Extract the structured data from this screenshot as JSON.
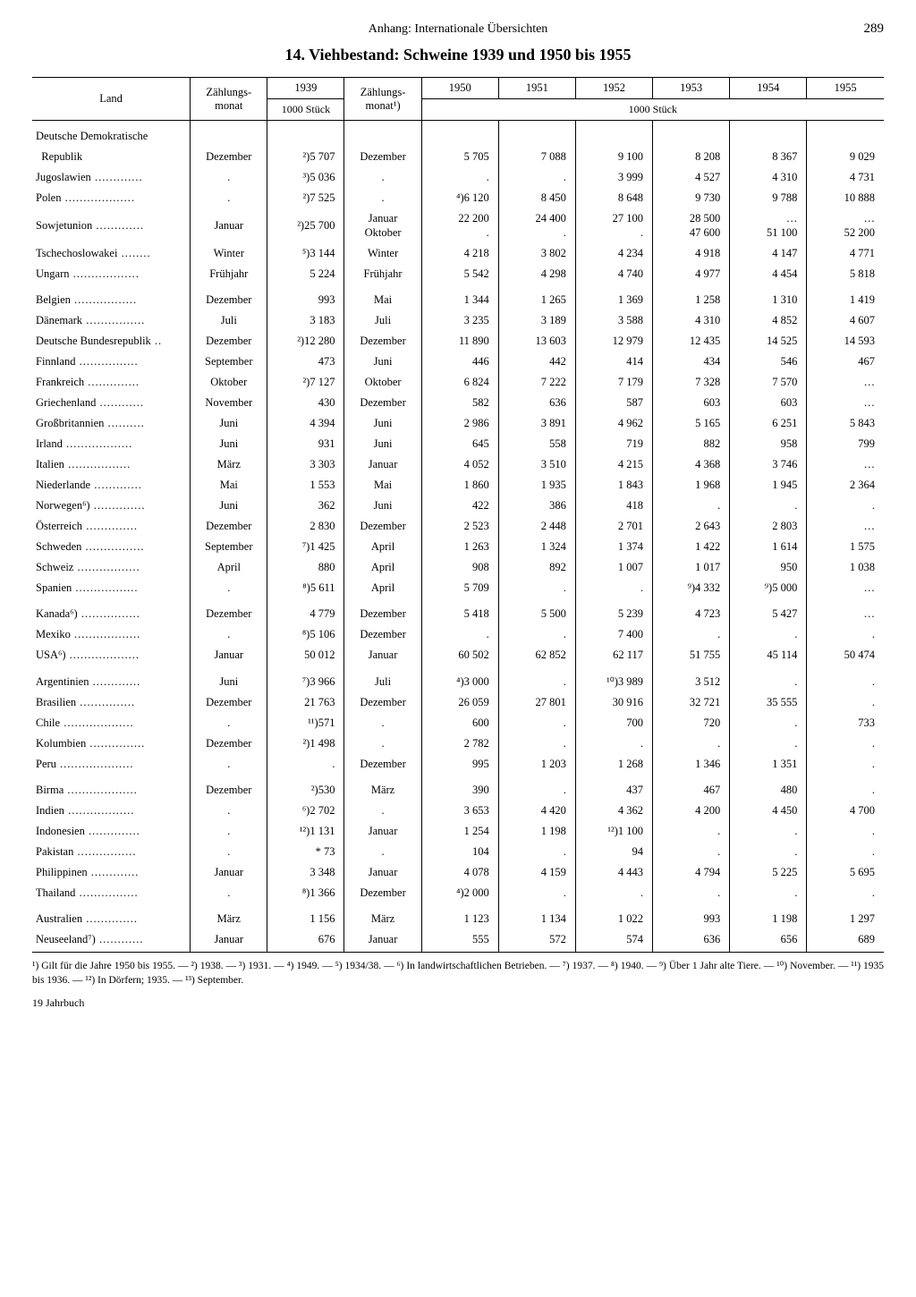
{
  "page": {
    "running_head": "Anhang: Internationale Übersichten",
    "number": "289",
    "title": "14. Viehbestand: Schweine 1939 und 1950 bis 1955",
    "footer": "19  Jahrbuch"
  },
  "columns": {
    "land": "Land",
    "month1": "Zählungs-\nmonat",
    "y1939": "1939",
    "month2": "Zählungs-\nmonat¹)",
    "y1950": "1950",
    "y1951": "1951",
    "y1952": "1952",
    "y1953": "1953",
    "y1954": "1954",
    "y1955": "1955",
    "unit": "1000 Stück"
  },
  "rows": [
    {
      "gap": true,
      "land": "Deutsche Demokratische",
      "m1": "",
      "v39": "",
      "m2": "",
      "v50": "",
      "v51": "",
      "v52": "",
      "v53": "",
      "v54": "",
      "v55": ""
    },
    {
      "land": "  Republik",
      "m1": "Dezember",
      "v39": "²)5 707",
      "m2": "Dezember",
      "v50": "5 705",
      "v51": "7 088",
      "v52": "9 100",
      "v53": "8 208",
      "v54": "8 367",
      "v55": "9 029"
    },
    {
      "land": "Jugoslawien",
      "m1": ".",
      "v39": "³)5 036",
      "m2": ".",
      "v50": ".",
      "v51": ".",
      "v52": "3 999",
      "v53": "4 527",
      "v54": "4 310",
      "v55": "4 731"
    },
    {
      "land": "Polen",
      "m1": ".",
      "v39": "²)7 525",
      "m2": ".",
      "v50": "⁴)6 120",
      "v51": "8 450",
      "v52": "8 648",
      "v53": "9 730",
      "v54": "9 788",
      "v55": "10 888"
    },
    {
      "land": "Sowjetunion",
      "m1": "Januar",
      "v39": "²)25 700",
      "m2": "Januar\nOktober",
      "v50": "22 200\n.",
      "v51": "24 400\n.",
      "v52": "27 100\n.",
      "v53": "28 500\n47 600",
      "v54": "…\n51 100",
      "v55": "…\n52 200"
    },
    {
      "land": "Tschechoslowakei",
      "m1": "Winter",
      "v39": "⁵)3 144",
      "m2": "Winter",
      "v50": "4 218",
      "v51": "3 802",
      "v52": "4 234",
      "v53": "4 918",
      "v54": "4 147",
      "v55": "4 771"
    },
    {
      "land": "Ungarn",
      "m1": "Frühjahr",
      "v39": "5 224",
      "m2": "Frühjahr",
      "v50": "5 542",
      "v51": "4 298",
      "v52": "4 740",
      "v53": "4 977",
      "v54": "4 454",
      "v55": "5 818"
    },
    {
      "gap": true,
      "land": "Belgien",
      "m1": "Dezember",
      "v39": "993",
      "m2": "Mai",
      "v50": "1 344",
      "v51": "1 265",
      "v52": "1 369",
      "v53": "1 258",
      "v54": "1 310",
      "v55": "1 419"
    },
    {
      "land": "Dänemark",
      "m1": "Juli",
      "v39": "3 183",
      "m2": "Juli",
      "v50": "3 235",
      "v51": "3 189",
      "v52": "3 588",
      "v53": "4 310",
      "v54": "4 852",
      "v55": "4 607"
    },
    {
      "land": "Deutsche Bundesrepublik",
      "m1": "Dezember",
      "v39": "²)12 280",
      "m2": "Dezember",
      "v50": "11 890",
      "v51": "13 603",
      "v52": "12 979",
      "v53": "12 435",
      "v54": "14 525",
      "v55": "14 593"
    },
    {
      "land": "Finnland",
      "m1": "September",
      "v39": "473",
      "m2": "Juni",
      "v50": "446",
      "v51": "442",
      "v52": "414",
      "v53": "434",
      "v54": "546",
      "v55": "467"
    },
    {
      "land": "Frankreich",
      "m1": "Oktober",
      "v39": "²)7 127",
      "m2": "Oktober",
      "v50": "6 824",
      "v51": "7 222",
      "v52": "7 179",
      "v53": "7 328",
      "v54": "7 570",
      "v55": "…"
    },
    {
      "land": "Griechenland",
      "m1": "November",
      "v39": "430",
      "m2": "Dezember",
      "v50": "582",
      "v51": "636",
      "v52": "587",
      "v53": "603",
      "v54": "603",
      "v55": "…"
    },
    {
      "land": "Großbritannien",
      "m1": "Juni",
      "v39": "4 394",
      "m2": "Juni",
      "v50": "2 986",
      "v51": "3 891",
      "v52": "4 962",
      "v53": "5 165",
      "v54": "6 251",
      "v55": "5 843"
    },
    {
      "land": "Irland",
      "m1": "Juni",
      "v39": "931",
      "m2": "Juni",
      "v50": "645",
      "v51": "558",
      "v52": "719",
      "v53": "882",
      "v54": "958",
      "v55": "799"
    },
    {
      "land": "Italien",
      "m1": "März",
      "v39": "3 303",
      "m2": "Januar",
      "v50": "4 052",
      "v51": "3 510",
      "v52": "4 215",
      "v53": "4 368",
      "v54": "3 746",
      "v55": "…"
    },
    {
      "land": "Niederlande",
      "m1": "Mai",
      "v39": "1 553",
      "m2": "Mai",
      "v50": "1 860",
      "v51": "1 935",
      "v52": "1 843",
      "v53": "1 968",
      "v54": "1 945",
      "v55": "2 364"
    },
    {
      "land": "Norwegen⁶)",
      "m1": "Juni",
      "v39": "362",
      "m2": "Juni",
      "v50": "422",
      "v51": "386",
      "v52": "418",
      "v53": ".",
      "v54": ".",
      "v55": "."
    },
    {
      "land": "Österreich",
      "m1": "Dezember",
      "v39": "2 830",
      "m2": "Dezember",
      "v50": "2 523",
      "v51": "2 448",
      "v52": "2 701",
      "v53": "2 643",
      "v54": "2 803",
      "v55": "…"
    },
    {
      "land": "Schweden",
      "m1": "September",
      "v39": "⁷)1 425",
      "m2": "April",
      "v50": "1 263",
      "v51": "1 324",
      "v52": "1 374",
      "v53": "1 422",
      "v54": "1 614",
      "v55": "1 575"
    },
    {
      "land": "Schweiz",
      "m1": "April",
      "v39": "880",
      "m2": "April",
      "v50": "908",
      "v51": "892",
      "v52": "1 007",
      "v53": "1 017",
      "v54": "950",
      "v55": "1 038"
    },
    {
      "land": "Spanien",
      "m1": ".",
      "v39": "⁸)5 611",
      "m2": "April",
      "v50": "5 709",
      "v51": ".",
      "v52": ".",
      "v53": "⁹)4 332",
      "v54": "⁹)5 000",
      "v55": "…"
    },
    {
      "gap": true,
      "land": "Kanada⁶)",
      "m1": "Dezember",
      "v39": "4 779",
      "m2": "Dezember",
      "v50": "5 418",
      "v51": "5 500",
      "v52": "5 239",
      "v53": "4 723",
      "v54": "5 427",
      "v55": "…"
    },
    {
      "land": "Mexiko",
      "m1": ".",
      "v39": "⁸)5 106",
      "m2": "Dezember",
      "v50": ".",
      "v51": ".",
      "v52": "7 400",
      "v53": ".",
      "v54": ".",
      "v55": "."
    },
    {
      "land": "USA⁶)",
      "m1": "Januar",
      "v39": "50 012",
      "m2": "Januar",
      "v50": "60 502",
      "v51": "62 852",
      "v52": "62 117",
      "v53": "51 755",
      "v54": "45 114",
      "v55": "50 474"
    },
    {
      "gap": true,
      "land": "Argentinien",
      "m1": "Juni",
      "v39": "⁷)3 966",
      "m2": "Juli",
      "v50": "⁴)3 000",
      "v51": ".",
      "v52": "¹⁰)3 989",
      "v53": "3 512",
      "v54": ".",
      "v55": "."
    },
    {
      "land": "Brasilien",
      "m1": "Dezember",
      "v39": "21 763",
      "m2": "Dezember",
      "v50": "26 059",
      "v51": "27 801",
      "v52": "30 916",
      "v53": "32 721",
      "v54": "35 555",
      "v55": "."
    },
    {
      "land": "Chile",
      "m1": ".",
      "v39": "¹¹)571",
      "m2": ".",
      "v50": "600",
      "v51": ".",
      "v52": "700",
      "v53": "720",
      "v54": ".",
      "v55": "733"
    },
    {
      "land": "Kolumbien",
      "m1": "Dezember",
      "v39": "²)1 498",
      "m2": ".",
      "v50": "2 782",
      "v51": ".",
      "v52": ".",
      "v53": ".",
      "v54": ".",
      "v55": "."
    },
    {
      "land": "Peru",
      "m1": ".",
      "v39": ".",
      "m2": "Dezember",
      "v50": "995",
      "v51": "1 203",
      "v52": "1 268",
      "v53": "1 346",
      "v54": "1 351",
      "v55": "."
    },
    {
      "gap": true,
      "land": "Birma",
      "m1": "Dezember",
      "v39": "²)530",
      "m2": "März",
      "v50": "390",
      "v51": ".",
      "v52": "437",
      "v53": "467",
      "v54": "480",
      "v55": "."
    },
    {
      "land": "Indien",
      "m1": ".",
      "v39": "⁶)2 702",
      "m2": ".",
      "v50": "3 653",
      "v51": "4 420",
      "v52": "4 362",
      "v53": "4 200",
      "v54": "4 450",
      "v55": "4 700"
    },
    {
      "land": "Indonesien",
      "m1": ".",
      "v39": "¹²)1 131",
      "m2": "Januar",
      "v50": "1 254",
      "v51": "1 198",
      "v52": "¹²)1 100",
      "v53": ".",
      "v54": ".",
      "v55": "."
    },
    {
      "land": "Pakistan",
      "m1": ".",
      "v39": "* 73",
      "m2": ".",
      "v50": "104",
      "v51": ".",
      "v52": "94",
      "v53": ".",
      "v54": ".",
      "v55": "."
    },
    {
      "land": "Philippinen",
      "m1": "Januar",
      "v39": "3 348",
      "m2": "Januar",
      "v50": "4 078",
      "v51": "4 159",
      "v52": "4 443",
      "v53": "4 794",
      "v54": "5 225",
      "v55": "5 695"
    },
    {
      "land": "Thailand",
      "m1": ".",
      "v39": "⁸)1 366",
      "m2": "Dezember",
      "v50": "⁴)2 000",
      "v51": ".",
      "v52": ".",
      "v53": ".",
      "v54": ".",
      "v55": "."
    },
    {
      "gap": true,
      "land": "Australien",
      "m1": "März",
      "v39": "1 156",
      "m2": "März",
      "v50": "1 123",
      "v51": "1 134",
      "v52": "1 022",
      "v53": "993",
      "v54": "1 198",
      "v55": "1 297"
    },
    {
      "last": true,
      "land": "Neuseeland⁷)",
      "m1": "Januar",
      "v39": "676",
      "m2": "Januar",
      "v50": "555",
      "v51": "572",
      "v52": "574",
      "v53": "636",
      "v54": "656",
      "v55": "689"
    }
  ],
  "footnotes": "¹) Gilt für die Jahre 1950 bis 1955. — ²) 1938. — ³) 1931. — ⁴) 1949. — ⁵) 1934/38. — ⁶) In landwirtschaftlichen Betrieben. — ⁷) 1937. — ⁸) 1940. — ⁹) Über 1 Jahr alte Tiere. — ¹⁰) November. — ¹¹) 1935 bis 1936. — ¹²) In Dörfern; 1935. — ¹³) September."
}
